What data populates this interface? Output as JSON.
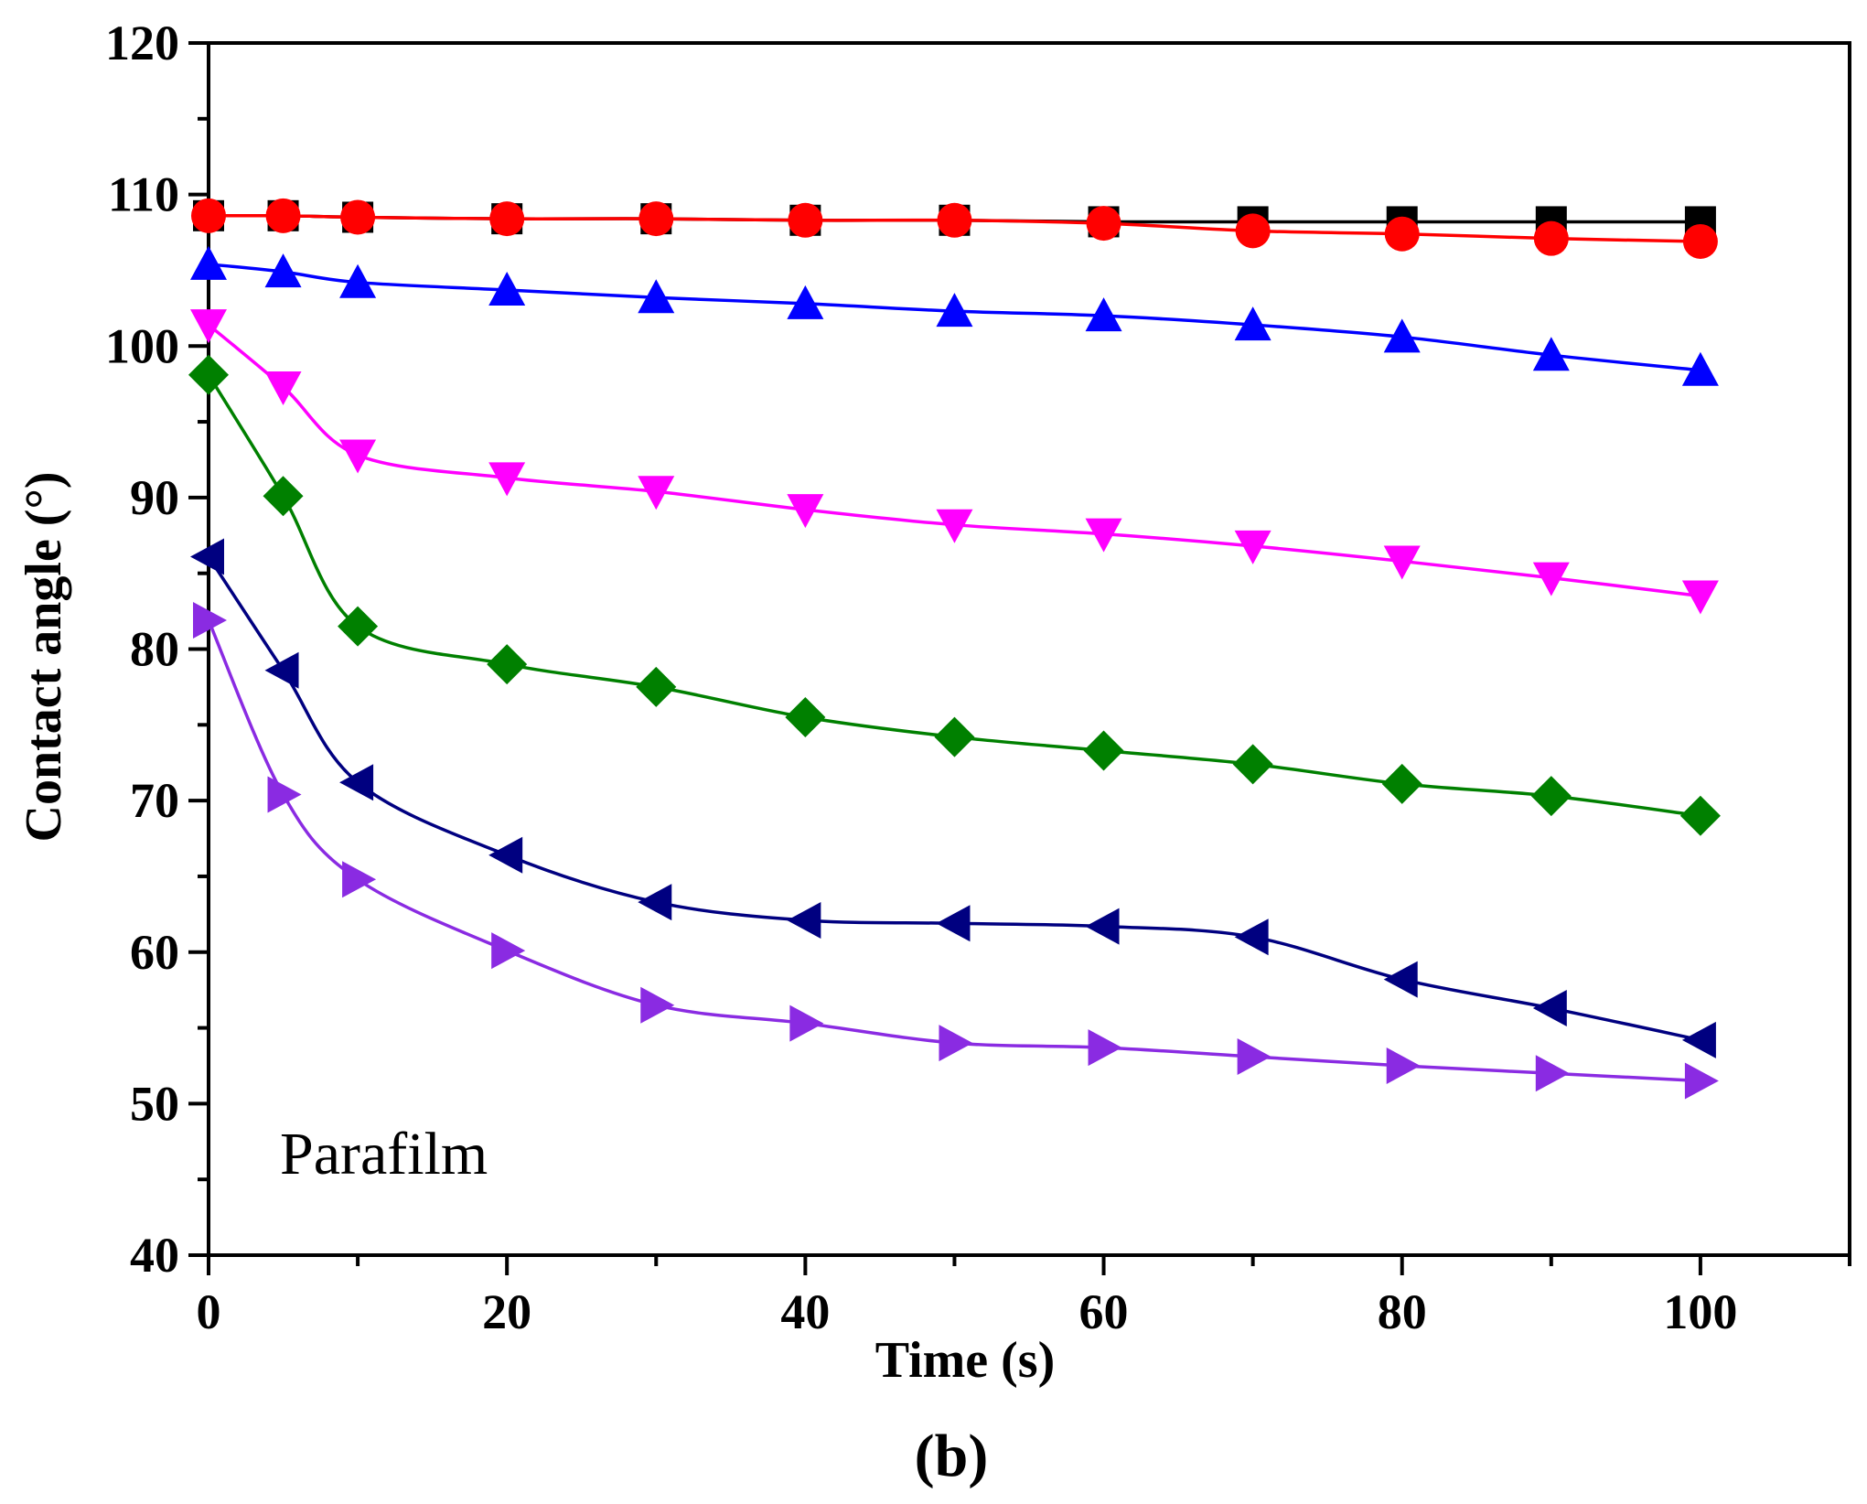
{
  "chart_data": {
    "type": "line",
    "title": "",
    "xlabel": "Time (s)",
    "ylabel": "Contact angle (°)",
    "xlim": [
      0,
      110
    ],
    "ylim": [
      40,
      120
    ],
    "x_ticks": [
      0,
      20,
      40,
      60,
      80,
      100
    ],
    "y_ticks": [
      40,
      50,
      60,
      70,
      80,
      90,
      100,
      110,
      120
    ],
    "annotation": "Parafilm",
    "panel_label": "(b)",
    "grid": false,
    "legend": "none",
    "x": [
      0,
      5,
      10,
      20,
      30,
      40,
      50,
      60,
      70,
      80,
      90,
      100
    ],
    "series": [
      {
        "marker": "square",
        "color": "#000000",
        "values": [
          108.6,
          108.6,
          108.5,
          108.4,
          108.4,
          108.3,
          108.3,
          108.2,
          108.2,
          108.2,
          108.2,
          108.2
        ]
      },
      {
        "marker": "circle",
        "color": "#ff0000",
        "values": [
          108.6,
          108.6,
          108.5,
          108.4,
          108.4,
          108.3,
          108.3,
          108.1,
          107.6,
          107.4,
          107.1,
          106.9
        ]
      },
      {
        "marker": "triangle-up",
        "color": "#0000ff",
        "values": [
          105.4,
          104.9,
          104.2,
          103.7,
          103.2,
          102.8,
          102.3,
          102.0,
          101.4,
          100.6,
          99.4,
          98.4
        ]
      },
      {
        "marker": "triangle-down",
        "color": "#ff00ff",
        "values": [
          101.4,
          97.3,
          92.8,
          91.3,
          90.4,
          89.2,
          88.2,
          87.6,
          86.8,
          85.8,
          84.7,
          83.5
        ]
      },
      {
        "marker": "diamond",
        "color": "#008000",
        "values": [
          98.1,
          90.1,
          81.5,
          79.0,
          77.5,
          75.5,
          74.2,
          73.3,
          72.4,
          71.1,
          70.3,
          69.0
        ]
      },
      {
        "marker": "triangle-left",
        "color": "#000080",
        "values": [
          86.1,
          78.6,
          71.2,
          66.4,
          63.3,
          62.1,
          61.9,
          61.7,
          61.0,
          58.2,
          56.3,
          54.2
        ]
      },
      {
        "marker": "triangle-right",
        "color": "#8a2be2",
        "values": [
          81.9,
          70.4,
          64.8,
          60.1,
          56.5,
          55.3,
          54.0,
          53.7,
          53.1,
          52.5,
          52.0,
          51.5
        ]
      }
    ]
  }
}
